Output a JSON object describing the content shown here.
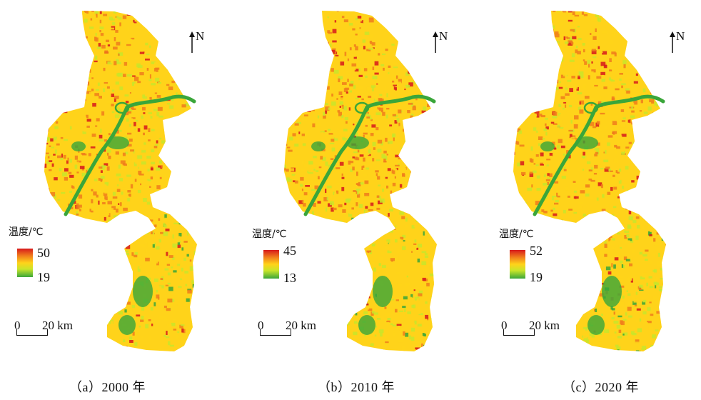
{
  "north_label": "N",
  "legend_title": "温度/℃",
  "scale": {
    "zero": "0",
    "distance": "20 km"
  },
  "colors": {
    "ramp": [
      "#d7191c",
      "#f07c1c",
      "#ffd31a",
      "#c9e52a",
      "#3aa63a"
    ],
    "river": "#3aa63a",
    "background": "#ffffff"
  },
  "panels": [
    {
      "id": "a",
      "caption": "（a）2000 年",
      "temp_max": "50",
      "temp_min": "19"
    },
    {
      "id": "b",
      "caption": "（b）2010 年",
      "temp_max": "45",
      "temp_min": "13"
    },
    {
      "id": "c",
      "caption": "（c）2020 年",
      "temp_max": "52",
      "temp_min": "19"
    }
  ]
}
